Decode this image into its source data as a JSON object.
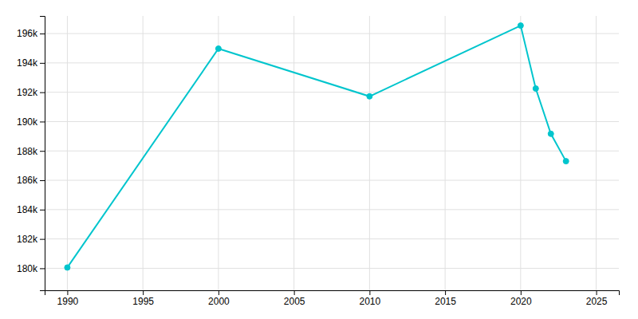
{
  "chart_data": {
    "type": "line",
    "x": [
      1990,
      2000,
      2010,
      2020,
      2021,
      2022,
      2023
    ],
    "values": [
      180053,
      194973,
      191719,
      196543,
      192253,
      189167,
      187300
    ],
    "color": "#00C5CD",
    "marker": "circle",
    "xlim": [
      1988.5,
      2026.5
    ],
    "xticks": [
      1990,
      1995,
      2000,
      2005,
      2010,
      2015,
      2020,
      2025
    ],
    "ylim": [
      178500,
      197200
    ],
    "yticks": [
      {
        "value": 180000,
        "label": "180k"
      },
      {
        "value": 182000,
        "label": "182k"
      },
      {
        "value": 184000,
        "label": "184k"
      },
      {
        "value": 186000,
        "label": "186k"
      },
      {
        "value": 188000,
        "label": "188k"
      },
      {
        "value": 190000,
        "label": "190k"
      },
      {
        "value": 192000,
        "label": "192k"
      },
      {
        "value": 194000,
        "label": "194k"
      },
      {
        "value": 196000,
        "label": "196k"
      }
    ],
    "grid": true
  }
}
